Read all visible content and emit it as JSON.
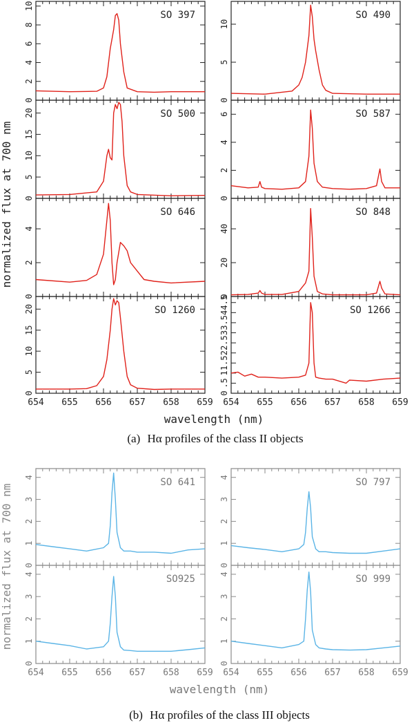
{
  "colors": {
    "class_ii": "#e0211a",
    "class_iii": "#5ab4e6",
    "axis": "#333333",
    "text": "#222222"
  },
  "figure_a": {
    "caption_label": "(a)",
    "caption_text": "Hα profiles of the class II objects",
    "ylabel": "normalized flux at 700 nm",
    "xlabel": "wavelength (nm)",
    "x_ticks": [
      "654",
      "655",
      "656",
      "657",
      "658",
      "659"
    ]
  },
  "figure_b": {
    "caption_label": "(b)",
    "caption_text": "Hα profiles of the class III objects",
    "ylabel": "normalized flux at 700 nm",
    "xlabel": "wavelength (nm)",
    "x_ticks": [
      "654",
      "655",
      "656",
      "657",
      "658",
      "659"
    ]
  },
  "chart_data": [
    {
      "type": "line",
      "group": "a",
      "title": "SO 397",
      "xlim": [
        654,
        659
      ],
      "ylim": [
        0,
        10.5
      ],
      "yticks": [
        0,
        2,
        4,
        6,
        8,
        10
      ],
      "ytick_labels": [
        "0",
        "2",
        "4",
        "6",
        "8",
        "10"
      ],
      "x": [
        654.0,
        655.0,
        655.8,
        656.0,
        656.1,
        656.2,
        656.25,
        656.3,
        656.35,
        656.4,
        656.45,
        656.5,
        656.6,
        656.7,
        657.0,
        657.5,
        658.0,
        659.0
      ],
      "y": [
        1.0,
        0.9,
        0.95,
        1.3,
        2.5,
        5.5,
        6.5,
        7.5,
        9.0,
        9.2,
        8.5,
        6.0,
        3.0,
        1.3,
        0.9,
        0.85,
        0.9,
        0.9
      ]
    },
    {
      "type": "line",
      "group": "a",
      "title": "SO 490",
      "xlim": [
        654,
        659
      ],
      "ylim": [
        0,
        13
      ],
      "yticks": [
        0,
        5,
        10
      ],
      "ytick_labels": [
        "0",
        "5",
        "10"
      ],
      "x": [
        654.0,
        655.0,
        655.8,
        656.0,
        656.1,
        656.2,
        656.3,
        656.35,
        656.4,
        656.45,
        656.5,
        656.6,
        656.7,
        656.8,
        657.0,
        658.0,
        659.0
      ],
      "y": [
        0.9,
        0.8,
        1.2,
        2.0,
        3.0,
        5.0,
        8.5,
        12.5,
        11.0,
        8.0,
        6.5,
        4.0,
        2.0,
        1.3,
        0.9,
        0.8,
        0.8
      ]
    },
    {
      "type": "line",
      "group": "a",
      "title": "SO 500",
      "xlim": [
        654,
        659
      ],
      "ylim": [
        0,
        23
      ],
      "yticks": [
        0,
        5,
        10,
        15,
        20
      ],
      "ytick_labels": [
        "0",
        "5",
        "10",
        "15",
        "20"
      ],
      "x": [
        654.0,
        655.0,
        655.8,
        656.0,
        656.1,
        656.15,
        656.2,
        656.25,
        656.3,
        656.35,
        656.4,
        656.45,
        656.5,
        656.55,
        656.6,
        656.7,
        656.8,
        657.0,
        658.0,
        659.0
      ],
      "y": [
        0.8,
        0.9,
        1.5,
        4.0,
        10.0,
        11.5,
        9.5,
        9.0,
        20.0,
        22.0,
        21.0,
        22.5,
        22.0,
        18.0,
        10.0,
        3.0,
        1.5,
        0.9,
        0.6,
        0.7
      ]
    },
    {
      "type": "line",
      "group": "a",
      "title": "SO 587",
      "xlim": [
        654,
        659
      ],
      "ylim": [
        0,
        7
      ],
      "yticks": [
        0,
        2,
        4,
        6
      ],
      "ytick_labels": [
        "0",
        "2",
        "4",
        "6"
      ],
      "x": [
        654.0,
        654.5,
        654.8,
        654.85,
        654.9,
        655.0,
        655.5,
        656.0,
        656.2,
        656.3,
        656.35,
        656.4,
        656.45,
        656.55,
        656.7,
        657.0,
        657.5,
        658.0,
        658.3,
        658.4,
        658.45,
        658.55,
        659.0
      ],
      "y": [
        0.9,
        0.75,
        0.8,
        1.2,
        0.8,
        0.7,
        0.65,
        0.75,
        1.2,
        3.0,
        6.3,
        5.0,
        2.5,
        1.2,
        0.8,
        0.7,
        0.65,
        0.7,
        0.9,
        2.1,
        1.2,
        0.75,
        0.75
      ]
    },
    {
      "type": "line",
      "group": "a",
      "title": "SO 646",
      "xlim": [
        654,
        659
      ],
      "ylim": [
        0,
        5.8
      ],
      "yticks": [
        0,
        2,
        4
      ],
      "ytick_labels": [
        "0",
        "2",
        "4"
      ],
      "x": [
        654.0,
        655.0,
        655.5,
        655.8,
        656.0,
        656.1,
        656.15,
        656.2,
        656.25,
        656.3,
        656.35,
        656.4,
        656.5,
        656.6,
        656.7,
        656.8,
        657.0,
        657.2,
        657.5,
        658.0,
        659.0
      ],
      "y": [
        1.0,
        0.85,
        0.95,
        1.3,
        2.5,
        4.5,
        5.5,
        4.5,
        2.0,
        0.7,
        1.0,
        2.0,
        3.2,
        3.0,
        2.7,
        2.0,
        1.5,
        1.0,
        0.9,
        0.8,
        0.9
      ]
    },
    {
      "type": "line",
      "group": "a",
      "title": "SO 848",
      "xlim": [
        654,
        659
      ],
      "ylim": [
        0,
        58
      ],
      "yticks": [
        0,
        20,
        40
      ],
      "ytick_labels": [
        "0",
        "20",
        "40"
      ],
      "x": [
        654.0,
        654.5,
        654.8,
        654.85,
        654.9,
        655.0,
        655.5,
        656.0,
        656.2,
        656.3,
        656.35,
        656.4,
        656.45,
        656.55,
        656.7,
        657.0,
        658.0,
        658.3,
        658.4,
        658.45,
        658.55,
        659.0
      ],
      "y": [
        1.0,
        1.2,
        2.0,
        3.5,
        2.0,
        1.2,
        1.2,
        3.0,
        8.0,
        15.0,
        52.0,
        35.0,
        12.0,
        3.0,
        1.5,
        1.0,
        1.0,
        2.0,
        9.0,
        5.0,
        1.5,
        1.0
      ]
    },
    {
      "type": "line",
      "group": "a",
      "title": "SO 1260",
      "xlim": [
        654,
        659
      ],
      "ylim": [
        0,
        23
      ],
      "yticks": [
        0,
        5,
        10,
        15,
        20
      ],
      "ytick_labels": [
        "0",
        "5",
        "10",
        "15",
        "20"
      ],
      "x": [
        654.0,
        655.0,
        655.5,
        655.8,
        656.0,
        656.1,
        656.2,
        656.25,
        656.3,
        656.35,
        656.4,
        656.45,
        656.5,
        656.6,
        656.7,
        656.8,
        657.0,
        657.5,
        658.0,
        659.0
      ],
      "y": [
        1.0,
        1.0,
        1.1,
        1.8,
        4.0,
        8.0,
        15.0,
        20.0,
        22.5,
        21.0,
        22.0,
        21.5,
        18.0,
        10.0,
        4.0,
        2.0,
        1.2,
        0.9,
        1.0,
        1.0
      ]
    },
    {
      "type": "line",
      "group": "a",
      "title": "SO 1266",
      "xlim": [
        654,
        659
      ],
      "ylim": [
        0,
        4.8
      ],
      "yticks": [
        0,
        0.5,
        1,
        1.5,
        2,
        2.5,
        3,
        3.5,
        4,
        4.5
      ],
      "ytick_labels": [
        "0",
        ".5",
        "1",
        "1.5",
        "2",
        "2.5",
        "3",
        "3.5",
        "4",
        "4.5"
      ],
      "x": [
        654.0,
        654.2,
        654.4,
        654.6,
        654.8,
        655.0,
        655.5,
        656.0,
        656.2,
        656.3,
        656.35,
        656.4,
        656.45,
        656.5,
        656.6,
        656.8,
        657.0,
        657.4,
        657.5,
        658.0,
        658.5,
        659.0
      ],
      "y": [
        1.0,
        1.05,
        0.85,
        0.95,
        0.8,
        0.8,
        0.75,
        0.8,
        0.9,
        1.5,
        4.5,
        4.0,
        1.5,
        0.8,
        0.75,
        0.7,
        0.7,
        0.5,
        0.65,
        0.6,
        0.7,
        0.75
      ]
    },
    {
      "type": "line",
      "group": "b",
      "title": "SO 641",
      "xlim": [
        654,
        659
      ],
      "ylim": [
        0,
        4.4
      ],
      "yticks": [
        0,
        1,
        2,
        3,
        4
      ],
      "ytick_labels": [
        "0",
        "1",
        "2",
        "3",
        "4"
      ],
      "x": [
        654.0,
        654.5,
        655.0,
        655.5,
        656.0,
        656.15,
        656.2,
        656.25,
        656.3,
        656.35,
        656.4,
        656.5,
        656.6,
        656.8,
        657.0,
        657.5,
        658.0,
        658.5,
        659.0
      ],
      "y": [
        0.95,
        0.85,
        0.75,
        0.65,
        0.8,
        1.0,
        1.8,
        3.3,
        4.2,
        3.0,
        1.5,
        0.8,
        0.65,
        0.65,
        0.6,
        0.6,
        0.55,
        0.7,
        0.75
      ]
    },
    {
      "type": "line",
      "group": "b",
      "title": "SO 797",
      "xlim": [
        654,
        659
      ],
      "ylim": [
        0,
        4.4
      ],
      "yticks": [
        0,
        1,
        2,
        3,
        4
      ],
      "ytick_labels": [
        "0",
        "1",
        "2",
        "3",
        "4"
      ],
      "x": [
        654.0,
        654.5,
        655.0,
        655.5,
        656.0,
        656.15,
        656.2,
        656.25,
        656.3,
        656.35,
        656.4,
        656.5,
        656.6,
        656.8,
        657.0,
        657.5,
        658.0,
        658.5,
        659.0
      ],
      "y": [
        0.9,
        0.8,
        0.72,
        0.62,
        0.75,
        0.95,
        1.5,
        2.6,
        3.35,
        2.6,
        1.3,
        0.75,
        0.62,
        0.62,
        0.58,
        0.55,
        0.55,
        0.65,
        0.75
      ]
    },
    {
      "type": "line",
      "group": "b",
      "title": "SO925",
      "xlim": [
        654,
        659
      ],
      "ylim": [
        0,
        4.4
      ],
      "yticks": [
        0,
        1,
        2,
        3,
        4
      ],
      "ytick_labels": [
        "0",
        "1",
        "2",
        "3",
        "4"
      ],
      "x": [
        654.0,
        654.5,
        655.0,
        655.5,
        656.0,
        656.15,
        656.2,
        656.25,
        656.3,
        656.35,
        656.4,
        656.5,
        656.6,
        656.8,
        657.0,
        657.5,
        658.0,
        658.5,
        659.0
      ],
      "y": [
        1.0,
        0.9,
        0.8,
        0.65,
        0.75,
        1.0,
        1.8,
        3.0,
        3.9,
        3.0,
        1.4,
        0.75,
        0.6,
        0.58,
        0.55,
        0.55,
        0.55,
        0.62,
        0.7
      ]
    },
    {
      "type": "line",
      "group": "b",
      "title": "SO 999",
      "xlim": [
        654,
        659
      ],
      "ylim": [
        0,
        4.4
      ],
      "yticks": [
        0,
        1,
        2,
        3,
        4
      ],
      "ytick_labels": [
        "0",
        "1",
        "2",
        "3",
        "4"
      ],
      "x": [
        654.0,
        654.5,
        655.0,
        655.5,
        656.0,
        656.15,
        656.2,
        656.25,
        656.3,
        656.35,
        656.4,
        656.5,
        656.6,
        656.8,
        657.0,
        657.5,
        658.0,
        658.5,
        659.0
      ],
      "y": [
        1.0,
        0.9,
        0.8,
        0.7,
        0.85,
        1.0,
        2.0,
        3.3,
        4.1,
        3.2,
        1.5,
        0.85,
        0.7,
        0.65,
        0.62,
        0.6,
        0.62,
        0.7,
        0.78
      ]
    }
  ]
}
